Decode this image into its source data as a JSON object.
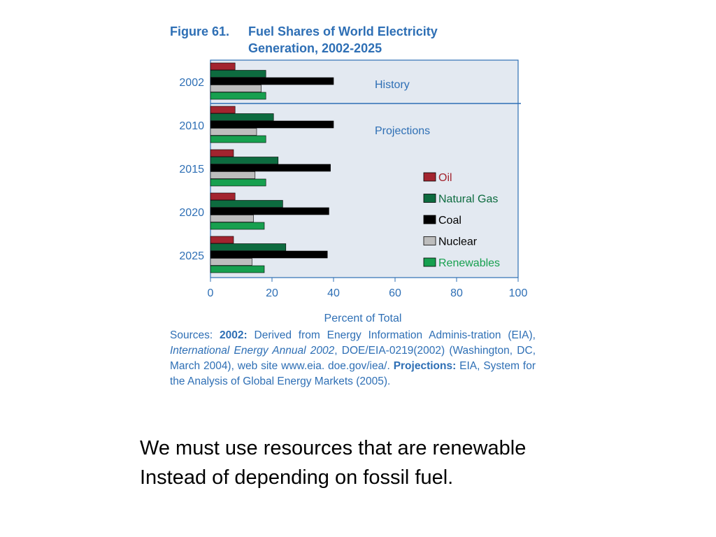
{
  "figure": {
    "number": "Figure 61.",
    "title_line1": "Fuel Shares of World Electricity",
    "title_line2": "Generation, 2002-2025"
  },
  "chart_data": {
    "type": "bar",
    "orientation": "horizontal",
    "categories": [
      "2002",
      "2010",
      "2015",
      "2020",
      "2025"
    ],
    "series": [
      {
        "name": "Oil",
        "color": "#a3242f",
        "values": [
          8,
          8,
          7.5,
          8,
          7.5
        ]
      },
      {
        "name": "Natural Gas",
        "color": "#0d6b3f",
        "values": [
          18,
          20.5,
          22,
          23.5,
          24.5
        ]
      },
      {
        "name": "Coal",
        "color": "#000000",
        "values": [
          40,
          40,
          39,
          38.5,
          38
        ]
      },
      {
        "name": "Nuclear",
        "color": "#bdbdbd",
        "values": [
          16.5,
          15,
          14.5,
          14,
          13.5
        ]
      },
      {
        "name": "Renewables",
        "color": "#17a04f",
        "values": [
          18,
          18,
          18,
          17.5,
          17.5
        ]
      }
    ],
    "xlim": [
      0,
      100
    ],
    "xticks": [
      "0",
      "20",
      "40",
      "60",
      "80",
      "100"
    ],
    "xlabel": "Percent of Total",
    "annotations": {
      "history": "History",
      "projections": "Projections"
    },
    "legend_position": "right",
    "plot_background": "#e3e9f1",
    "axis_color": "#2e6fb5"
  },
  "sources": {
    "prefix": "Sources: ",
    "label_2002": "2002:",
    "text_2002_a": " Derived from Energy Information Adminis-tration (EIA), ",
    "publication": "International Energy Annual 2002",
    "text_2002_b": ", DOE/EIA-0219(2002) (Washington, DC, March 2004), web site www.eia. doe.gov/iea/. ",
    "label_projections": "Projections:",
    "text_projections": " EIA, System for the Analysis of Global Energy Markets (2005)."
  },
  "caption": {
    "line1": "We must use resources that are renewable",
    "line2": "Instead of depending on fossil fuel."
  }
}
